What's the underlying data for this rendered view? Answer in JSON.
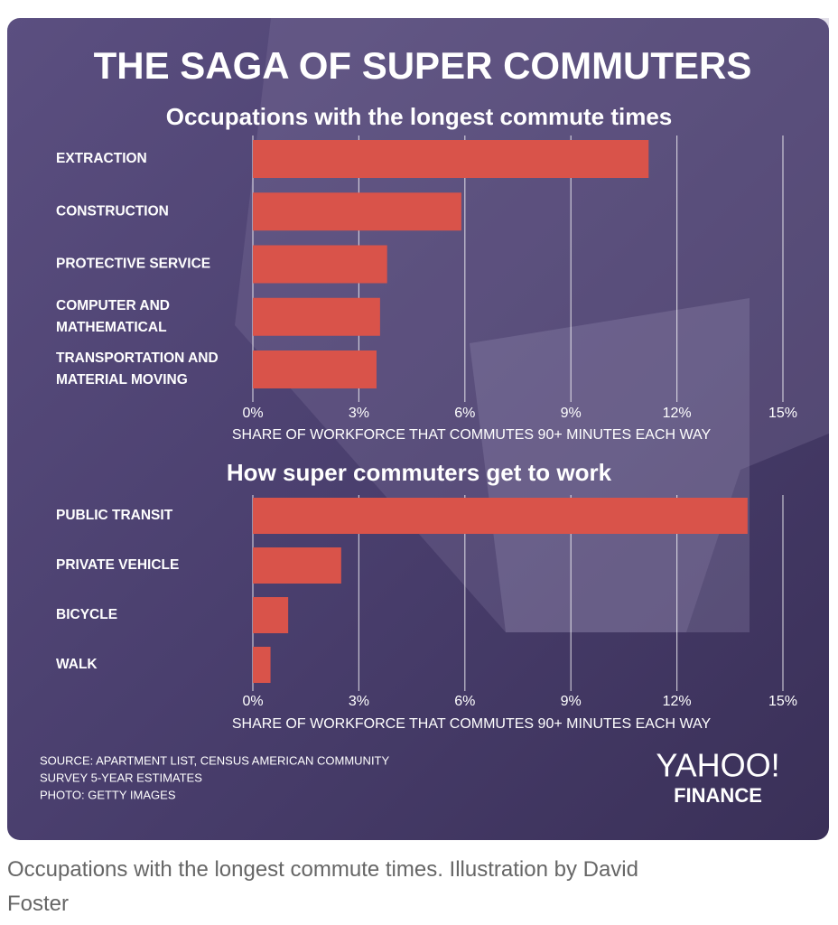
{
  "title": "THE SAGA OF SUPER COMMUTERS",
  "chart_data": [
    {
      "type": "bar",
      "orientation": "horizontal",
      "title": "Occupations with the longest commute times",
      "categories": [
        "EXTRACTION",
        "CONSTRUCTION",
        "PROTECTIVE SERVICE",
        "COMPUTER AND MATHEMATICAL",
        "TRANSPORTATION AND MATERIAL MOVING"
      ],
      "values": [
        11.2,
        5.9,
        3.8,
        3.6,
        3.5
      ],
      "color": "#d9534a",
      "xlim": [
        0,
        15
      ],
      "xticks": [
        {
          "value": 0,
          "label": "0%"
        },
        {
          "value": 3,
          "label": "3%"
        },
        {
          "value": 6,
          "label": "6%"
        },
        {
          "value": 9,
          "label": "9%"
        },
        {
          "value": 12,
          "label": "12%"
        },
        {
          "value": 15,
          "label": "15%"
        }
      ],
      "xlabel": "SHARE OF WORKFORCE THAT COMMUTES 90+ MINUTES EACH WAY",
      "grid": true
    },
    {
      "type": "bar",
      "orientation": "horizontal",
      "title": "How super commuters get to work",
      "categories": [
        "PUBLIC TRANSIT",
        "PRIVATE VEHICLE",
        "BICYCLE",
        "WALK"
      ],
      "values": [
        14.0,
        2.5,
        1.0,
        0.5
      ],
      "color": "#d9534a",
      "xlim": [
        0,
        15
      ],
      "xticks": [
        {
          "value": 0,
          "label": "0%"
        },
        {
          "value": 3,
          "label": "3%"
        },
        {
          "value": 6,
          "label": "6%"
        },
        {
          "value": 9,
          "label": "9%"
        },
        {
          "value": 12,
          "label": "12%"
        },
        {
          "value": 15,
          "label": "15%"
        }
      ],
      "xlabel": "SHARE OF WORKFORCE THAT COMMUTES 90+ MINUTES EACH WAY",
      "grid": true
    }
  ],
  "source": [
    "SOURCE:  APARTMENT LIST, CENSUS AMERICAN COMMUNITY",
    "SURVEY 5-YEAR ESTIMATES",
    "PHOTO: GETTY IMAGES"
  ],
  "logo": [
    "YAHOO!",
    "FINANCE"
  ],
  "caption": "Occupations with the longest commute times. Illustration by David Foster"
}
